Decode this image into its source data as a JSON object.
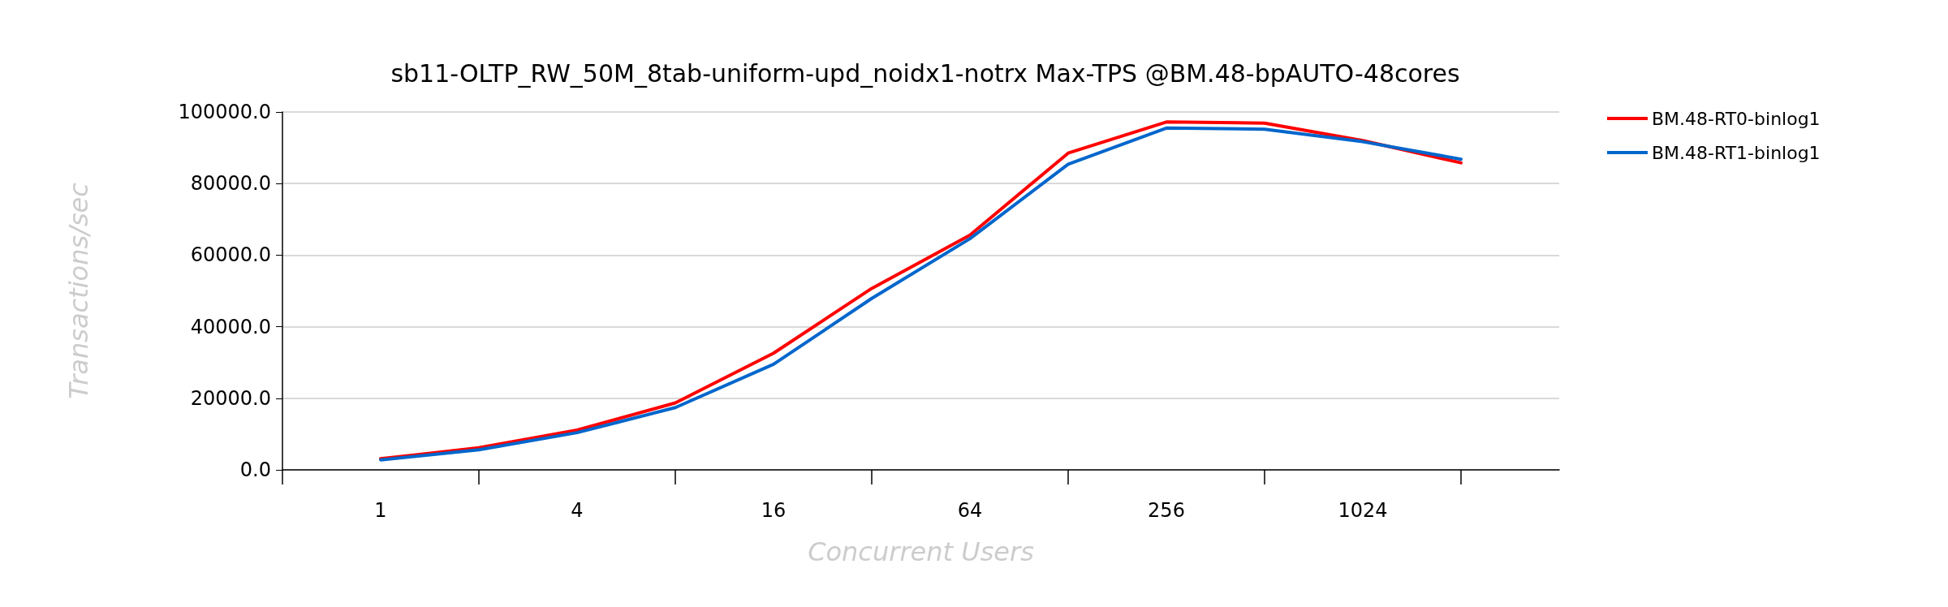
{
  "chart_data": {
    "type": "line",
    "title": "sb11-OLTP_RW_50M_8tab-uniform-upd_noidx1-notrx Max-TPS @BM.48-bpAUTO-48cores",
    "xlabel": "Concurrent Users",
    "ylabel": "Transactions/sec",
    "categories": [
      "1",
      null,
      "4",
      null,
      "16",
      null,
      "64",
      null,
      "256",
      null,
      "1024",
      null
    ],
    "series": [
      {
        "name": "BM.48-RT0-binlog1",
        "color": "#ff0000",
        "values": [
          3100,
          6200,
          11100,
          18700,
          32600,
          50700,
          65600,
          88500,
          97200,
          96900,
          92000,
          85800
        ]
      },
      {
        "name": "BM.48-RT1-binlog1",
        "color": "#0066cc",
        "values": [
          2800,
          5600,
          10400,
          17400,
          29500,
          47900,
          64600,
          85400,
          95500,
          95200,
          91700,
          86800
        ]
      }
    ],
    "ylim": [
      0,
      100000
    ],
    "yticks": [
      {
        "value": 0,
        "label": "0.0"
      },
      {
        "value": 20000,
        "label": "20000.0"
      },
      {
        "value": 40000,
        "label": "40000.0"
      },
      {
        "value": 60000,
        "label": "60000.0"
      },
      {
        "value": 80000,
        "label": "80000.0"
      },
      {
        "value": 100000,
        "label": "100000.0"
      }
    ],
    "grid": "y",
    "legend": "top right",
    "marker": "none",
    "line_style": "solid"
  }
}
